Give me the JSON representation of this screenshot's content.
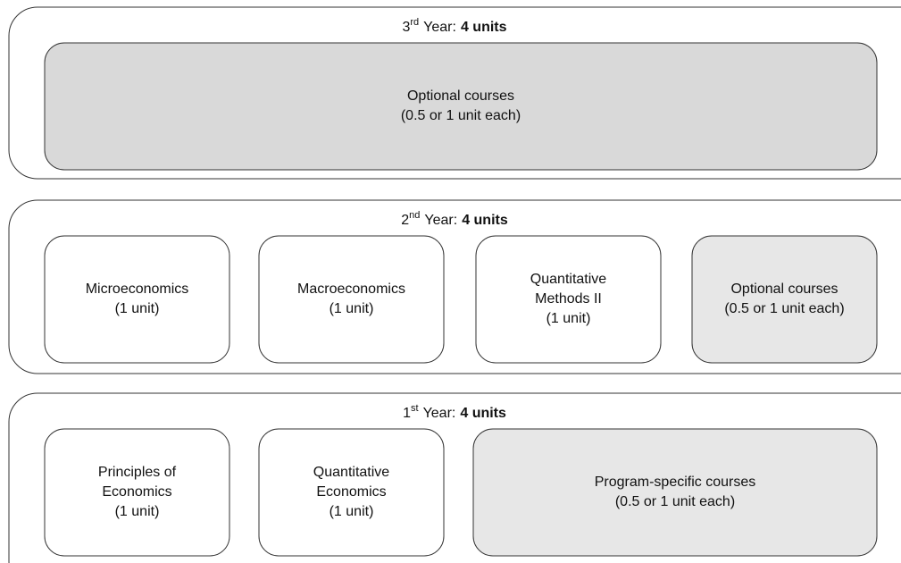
{
  "years": [
    {
      "ordinal": "3",
      "suffix": "rd",
      "label": "Year:",
      "units": "4 units",
      "boxes": [
        {
          "lines": [
            "Optional courses",
            "(0.5 or 1 unit each)"
          ]
        }
      ]
    },
    {
      "ordinal": "2",
      "suffix": "nd",
      "label": "Year:",
      "units": "4 units",
      "boxes": [
        {
          "lines": [
            "Microeconomics",
            "(1 unit)"
          ]
        },
        {
          "lines": [
            "Macroeconomics",
            "(1 unit)"
          ]
        },
        {
          "lines": [
            "Quantitative",
            "Methods II",
            "(1 unit)"
          ]
        },
        {
          "lines": [
            "Optional courses",
            "(0.5 or 1 unit each)"
          ]
        }
      ]
    },
    {
      "ordinal": "1",
      "suffix": "st",
      "label": "Year:",
      "units": "4 units",
      "boxes": [
        {
          "lines": [
            "Principles of",
            "Economics",
            "(1 unit)"
          ]
        },
        {
          "lines": [
            "Quantitative",
            "Economics",
            "(1 unit)"
          ]
        },
        {
          "lines": [
            "Program-specific courses",
            "(0.5 or 1 unit each)"
          ]
        }
      ]
    }
  ]
}
